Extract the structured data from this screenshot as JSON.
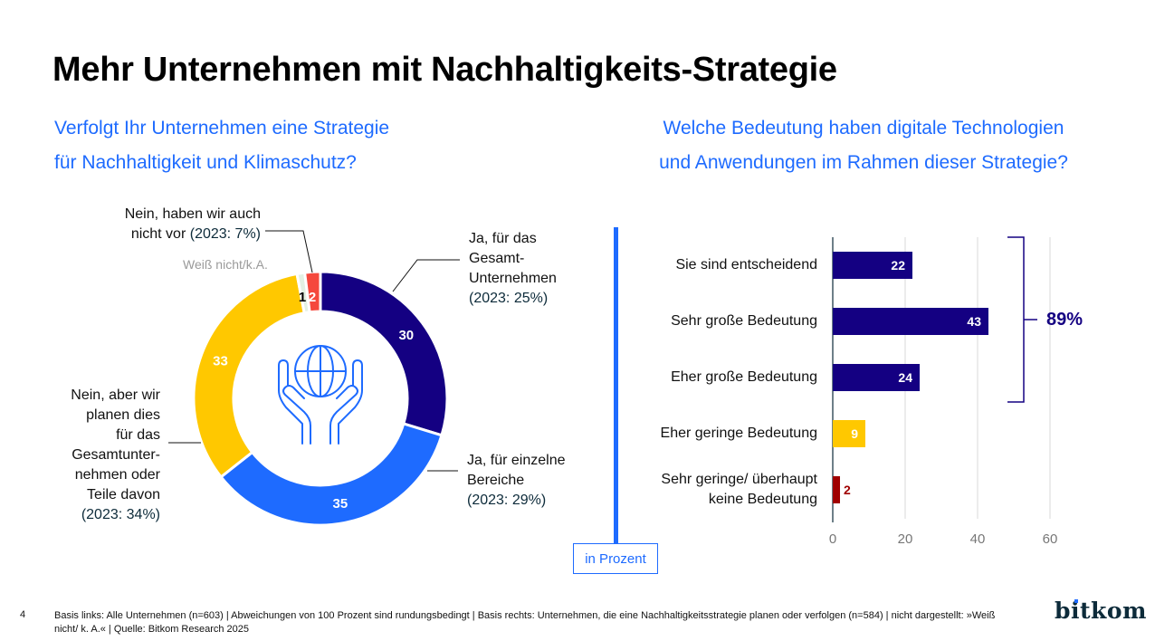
{
  "title": "Mehr Unternehmen mit Nachhaltigkeits-Strategie",
  "left_question": [
    "Verfolgt Ihr Unternehmen eine Strategie",
    "für Nachhaltigkeit und Klimaschutz?"
  ],
  "right_question": [
    "Welche Bedeutung haben digitale Technologien",
    "und Anwendungen im Rahmen dieser Strategie?"
  ],
  "unit_label": "in Prozent",
  "page_number": "4",
  "footer": "Basis links: Alle Unternehmen (n=603) | Abweichungen von 100 Prozent sind rundungsbedingt | Basis rechts: Unternehmen, die eine Nachhaltigkeitsstrategie planen oder verfolgen (n=584) | nicht dargestellt: »Weiß nicht/ k. A.« | Quelle: Bitkom Research 2025",
  "logo": "bitkom",
  "center_icon": "hands-holding-globe-icon",
  "colors": {
    "dark_blue": "#140082",
    "blue": "#1e6bff",
    "yellow": "#ffc800",
    "red": "#f5483c",
    "light_green": "#e3f0e3",
    "dark_red": "#a00000"
  },
  "chart_data": [
    {
      "type": "pie",
      "variant": "donut",
      "title": "Verfolgt Ihr Unternehmen eine Strategie für Nachhaltigkeit und Klimaschutz?",
      "slices": [
        {
          "label": "Ja, für das Gesamt-Unternehmen",
          "value": 30,
          "prev": "(2023: 25%)",
          "color": "#140082"
        },
        {
          "label": "Ja, für einzelne Bereiche",
          "value": 35,
          "prev": "(2023: 29%)",
          "color": "#1e6bff"
        },
        {
          "label": "Nein, aber wir planen dies für das Gesamtunternehmen oder Teile davon",
          "value": 33,
          "prev": "(2023: 34%)",
          "color": "#ffc800"
        },
        {
          "label": "Weiß nicht/k.A.",
          "value": 1,
          "prev": "",
          "color": "#e3f0e3"
        },
        {
          "label": "Nein, haben wir auch nicht vor",
          "value": 2,
          "prev": "(2023: 7%)",
          "color": "#f5483c"
        }
      ],
      "labels_display": {
        "ja_gesamt": [
          "Ja, für das",
          "Gesamt-",
          "Unternehmen"
        ],
        "ja_einzelne": [
          "Ja, für einzelne",
          "Bereiche"
        ],
        "nein_aber": [
          "Nein, aber wir",
          "planen dies",
          "für das",
          "Gesamtunter-",
          "nehmen oder",
          "Teile davon"
        ],
        "nein_nicht": [
          "Nein, haben wir auch",
          "nicht vor"
        ],
        "weiss_nicht": "Weiß nicht/k.A."
      }
    },
    {
      "type": "bar",
      "orientation": "horizontal",
      "title": "Welche Bedeutung haben digitale Technologien und Anwendungen im Rahmen dieser Strategie?",
      "categories": [
        "Sie sind entscheidend",
        "Sehr große Bedeutung",
        "Eher große Bedeutung",
        "Eher geringe Bedeutung",
        "Sehr geringe/ überhaupt keine Bedeutung"
      ],
      "category_lines": [
        [
          "Sie sind entscheidend"
        ],
        [
          "Sehr große Bedeutung"
        ],
        [
          "Eher große Bedeutung"
        ],
        [
          "Eher geringe Bedeutung"
        ],
        [
          "Sehr geringe/ überhaupt",
          "keine Bedeutung"
        ]
      ],
      "values": [
        22,
        43,
        24,
        9,
        2
      ],
      "colors": [
        "#140082",
        "#140082",
        "#140082",
        "#ffc800",
        "#a00000"
      ],
      "xlim": [
        0,
        60
      ],
      "xticks": [
        0,
        20,
        40,
        60
      ],
      "grid": true,
      "xlabel": "in Prozent",
      "annotation": {
        "label": "89%",
        "spans": [
          "Sie sind entscheidend",
          "Sehr große Bedeutung",
          "Eher große Bedeutung"
        ]
      }
    }
  ]
}
